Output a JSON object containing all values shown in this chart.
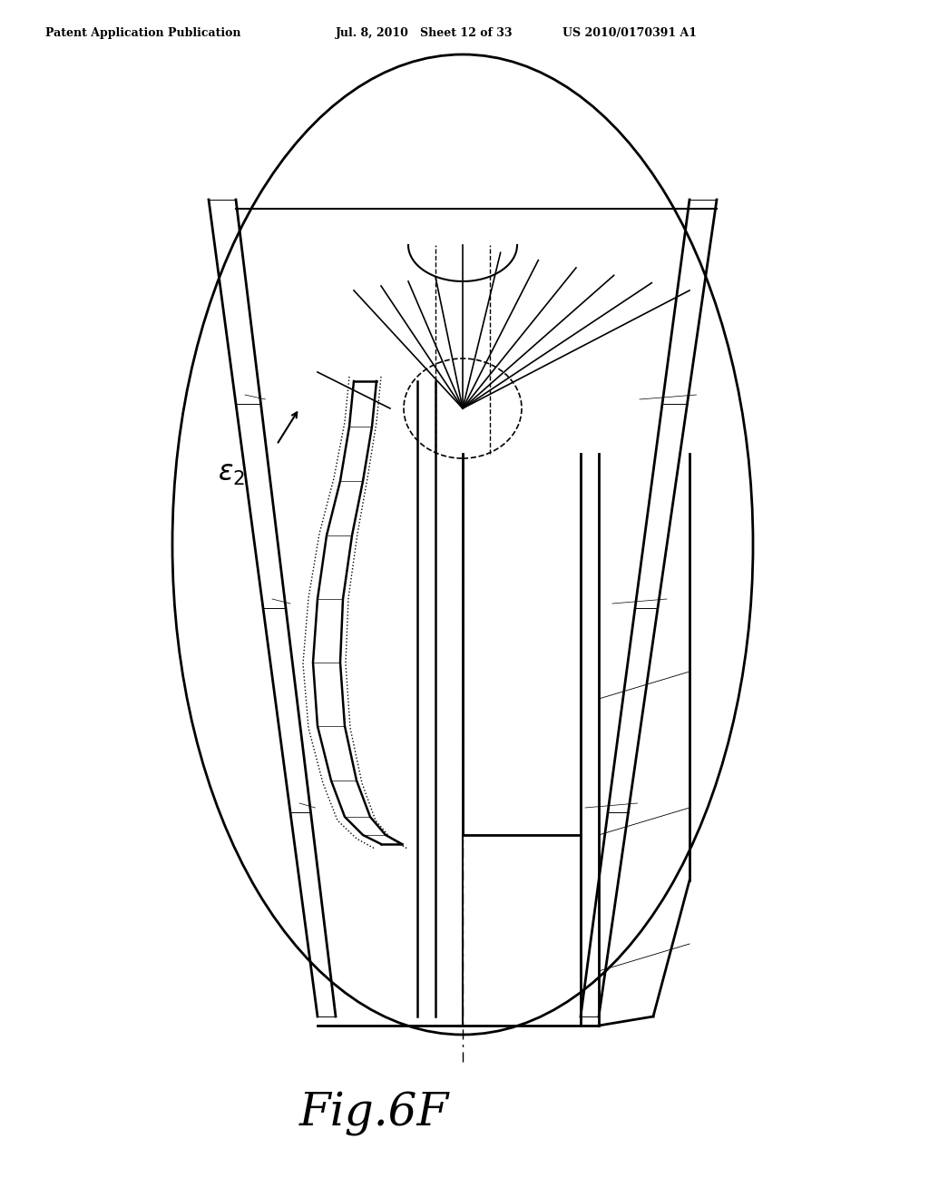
{
  "title": "Fig.6F",
  "header_left": "Patent Application Publication",
  "header_mid": "Jul. 8, 2010   Sheet 12 of 33",
  "header_right": "US 2010/0170391 A1",
  "bg_color": "#ffffff",
  "line_color": "#000000",
  "fig_label": "Fig.6F",
  "epsilon_label": "ε2"
}
